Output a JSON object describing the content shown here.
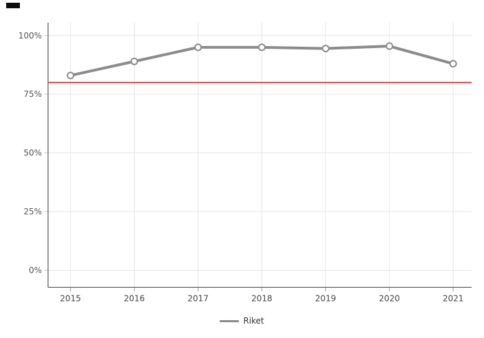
{
  "chart_data": {
    "type": "line",
    "title": "",
    "xlabel": "",
    "ylabel": "",
    "categories": [
      "2015",
      "2016",
      "2017",
      "2018",
      "2019",
      "2020",
      "2021"
    ],
    "series": [
      {
        "name": "Riket",
        "values": [
          83,
          89,
          95,
          95,
          94.5,
          95.5,
          88
        ],
        "color": "#8b8b8b",
        "marker": "circle-open"
      }
    ],
    "reference_line": {
      "value": 80,
      "color": "#e8484e"
    },
    "y_ticks": [
      "0%",
      "25%",
      "50%",
      "75%",
      "100%"
    ],
    "y_tick_values": [
      0,
      25,
      50,
      75,
      100
    ],
    "ylim": [
      -7.3,
      105.5
    ],
    "grid": true,
    "legend_position": "bottom-center",
    "colors": {
      "grid": "#e6e6e6",
      "axis": "#333333",
      "y_tick_mark": "#cccccc",
      "x_tick_mark": "#999999",
      "y_label": "#555555",
      "x_label": "#444444",
      "marker_fill": "#ffffff",
      "background": "#ffffff"
    }
  }
}
